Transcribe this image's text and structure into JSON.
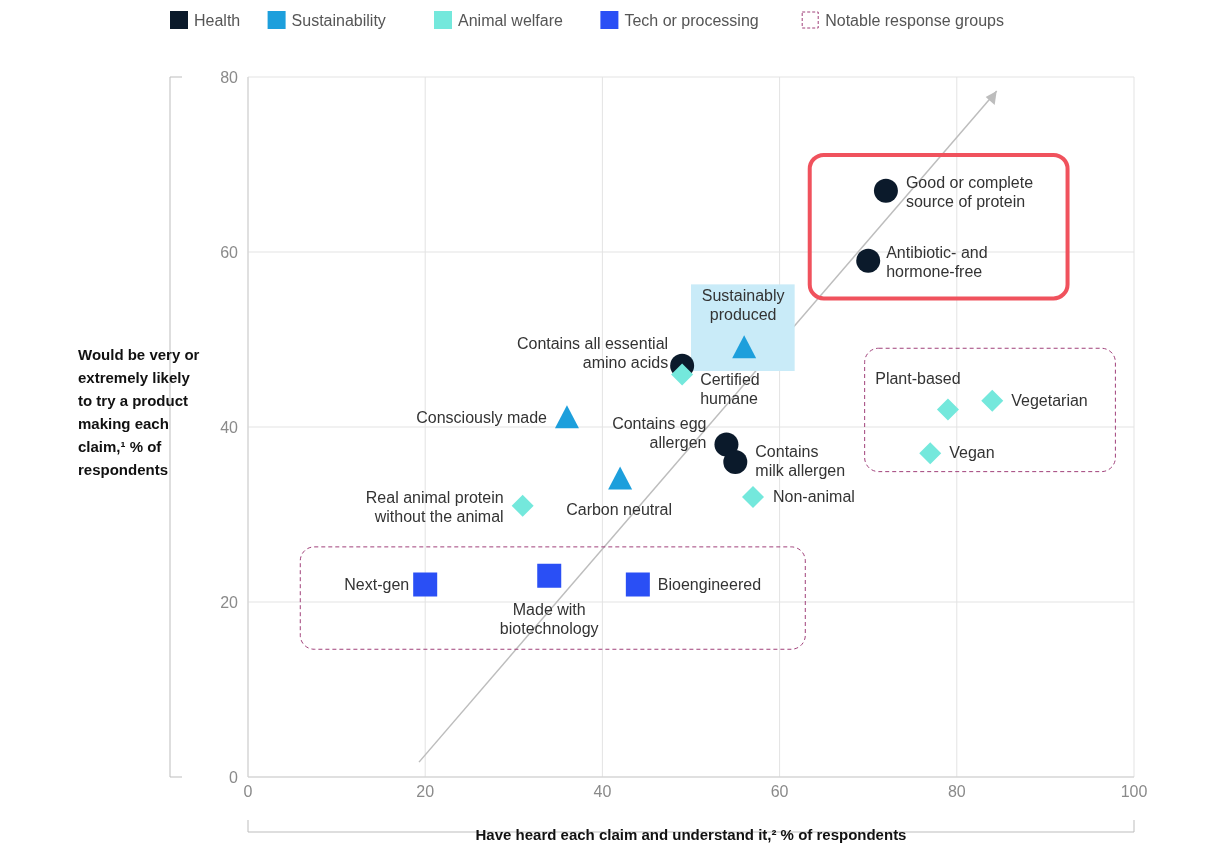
{
  "chart_data": {
    "type": "scatter",
    "xlabel": "Have heard each claim and understand it,² % of respondents",
    "ylabel": "Would be very or extremely likely to try a product making each claim,¹ % of respondents",
    "xlim": [
      0,
      100
    ],
    "ylim": [
      0,
      80
    ],
    "xticks": [
      0,
      20,
      40,
      60,
      80,
      100
    ],
    "yticks": [
      0,
      20,
      40,
      60,
      80
    ],
    "grid": true,
    "legend": "top",
    "series": [
      {
        "name": "Health",
        "color": "#0b1a2b",
        "marker": "circle",
        "x": [
          72,
          70,
          49,
          54,
          55
        ],
        "values": [
          67,
          59,
          47,
          38,
          36
        ]
      },
      {
        "name": "Sustainability",
        "color": "#1d9fdc",
        "marker": "triangle",
        "x": [
          56,
          36,
          42
        ],
        "values": [
          49,
          41,
          34
        ]
      },
      {
        "name": "Animal welfare",
        "color": "#74e8dc",
        "marker": "diamond",
        "x": [
          49,
          31,
          57,
          79,
          84,
          77
        ],
        "values": [
          46,
          31,
          32,
          42,
          43,
          37
        ]
      },
      {
        "name": "Tech or processing",
        "color": "#2a4ff5",
        "marker": "square",
        "x": [
          20,
          34,
          44
        ],
        "values": [
          22,
          23,
          22
        ]
      }
    ],
    "annotations": [
      {
        "text": "Good or complete\nsource of protein",
        "x": 72,
        "y": 67
      },
      {
        "text": "Antibiotic- and\nhormone-free",
        "x": 70,
        "y": 59
      },
      {
        "text": "Contains all essential\namino acids",
        "x": 49,
        "y": 47
      },
      {
        "text": "Contains egg\nallergen",
        "x": 54,
        "y": 38
      },
      {
        "text": "Contains\nmilk allergen",
        "x": 55,
        "y": 36
      },
      {
        "text": "Sustainably\nproduced",
        "x": 56,
        "y": 49
      },
      {
        "text": "Consciously made",
        "x": 36,
        "y": 41
      },
      {
        "text": "Carbon neutral",
        "x": 42,
        "y": 34
      },
      {
        "text": "Certified\nhumane",
        "x": 49,
        "y": 46
      },
      {
        "text": "Real animal protein\nwithout the animal",
        "x": 31,
        "y": 31
      },
      {
        "text": "Non-animal",
        "x": 57,
        "y": 32
      },
      {
        "text": "Plant-based",
        "x": 79,
        "y": 42
      },
      {
        "text": "Vegetarian",
        "x": 84,
        "y": 43
      },
      {
        "text": "Vegan",
        "x": 77,
        "y": 37
      },
      {
        "text": "Next-gen",
        "x": 20,
        "y": 22
      },
      {
        "text": "Made with\nbiotechnology",
        "x": 34,
        "y": 23
      },
      {
        "text": "Bioengineered",
        "x": 44,
        "y": 22
      },
      "Notable response groups"
    ]
  }
}
